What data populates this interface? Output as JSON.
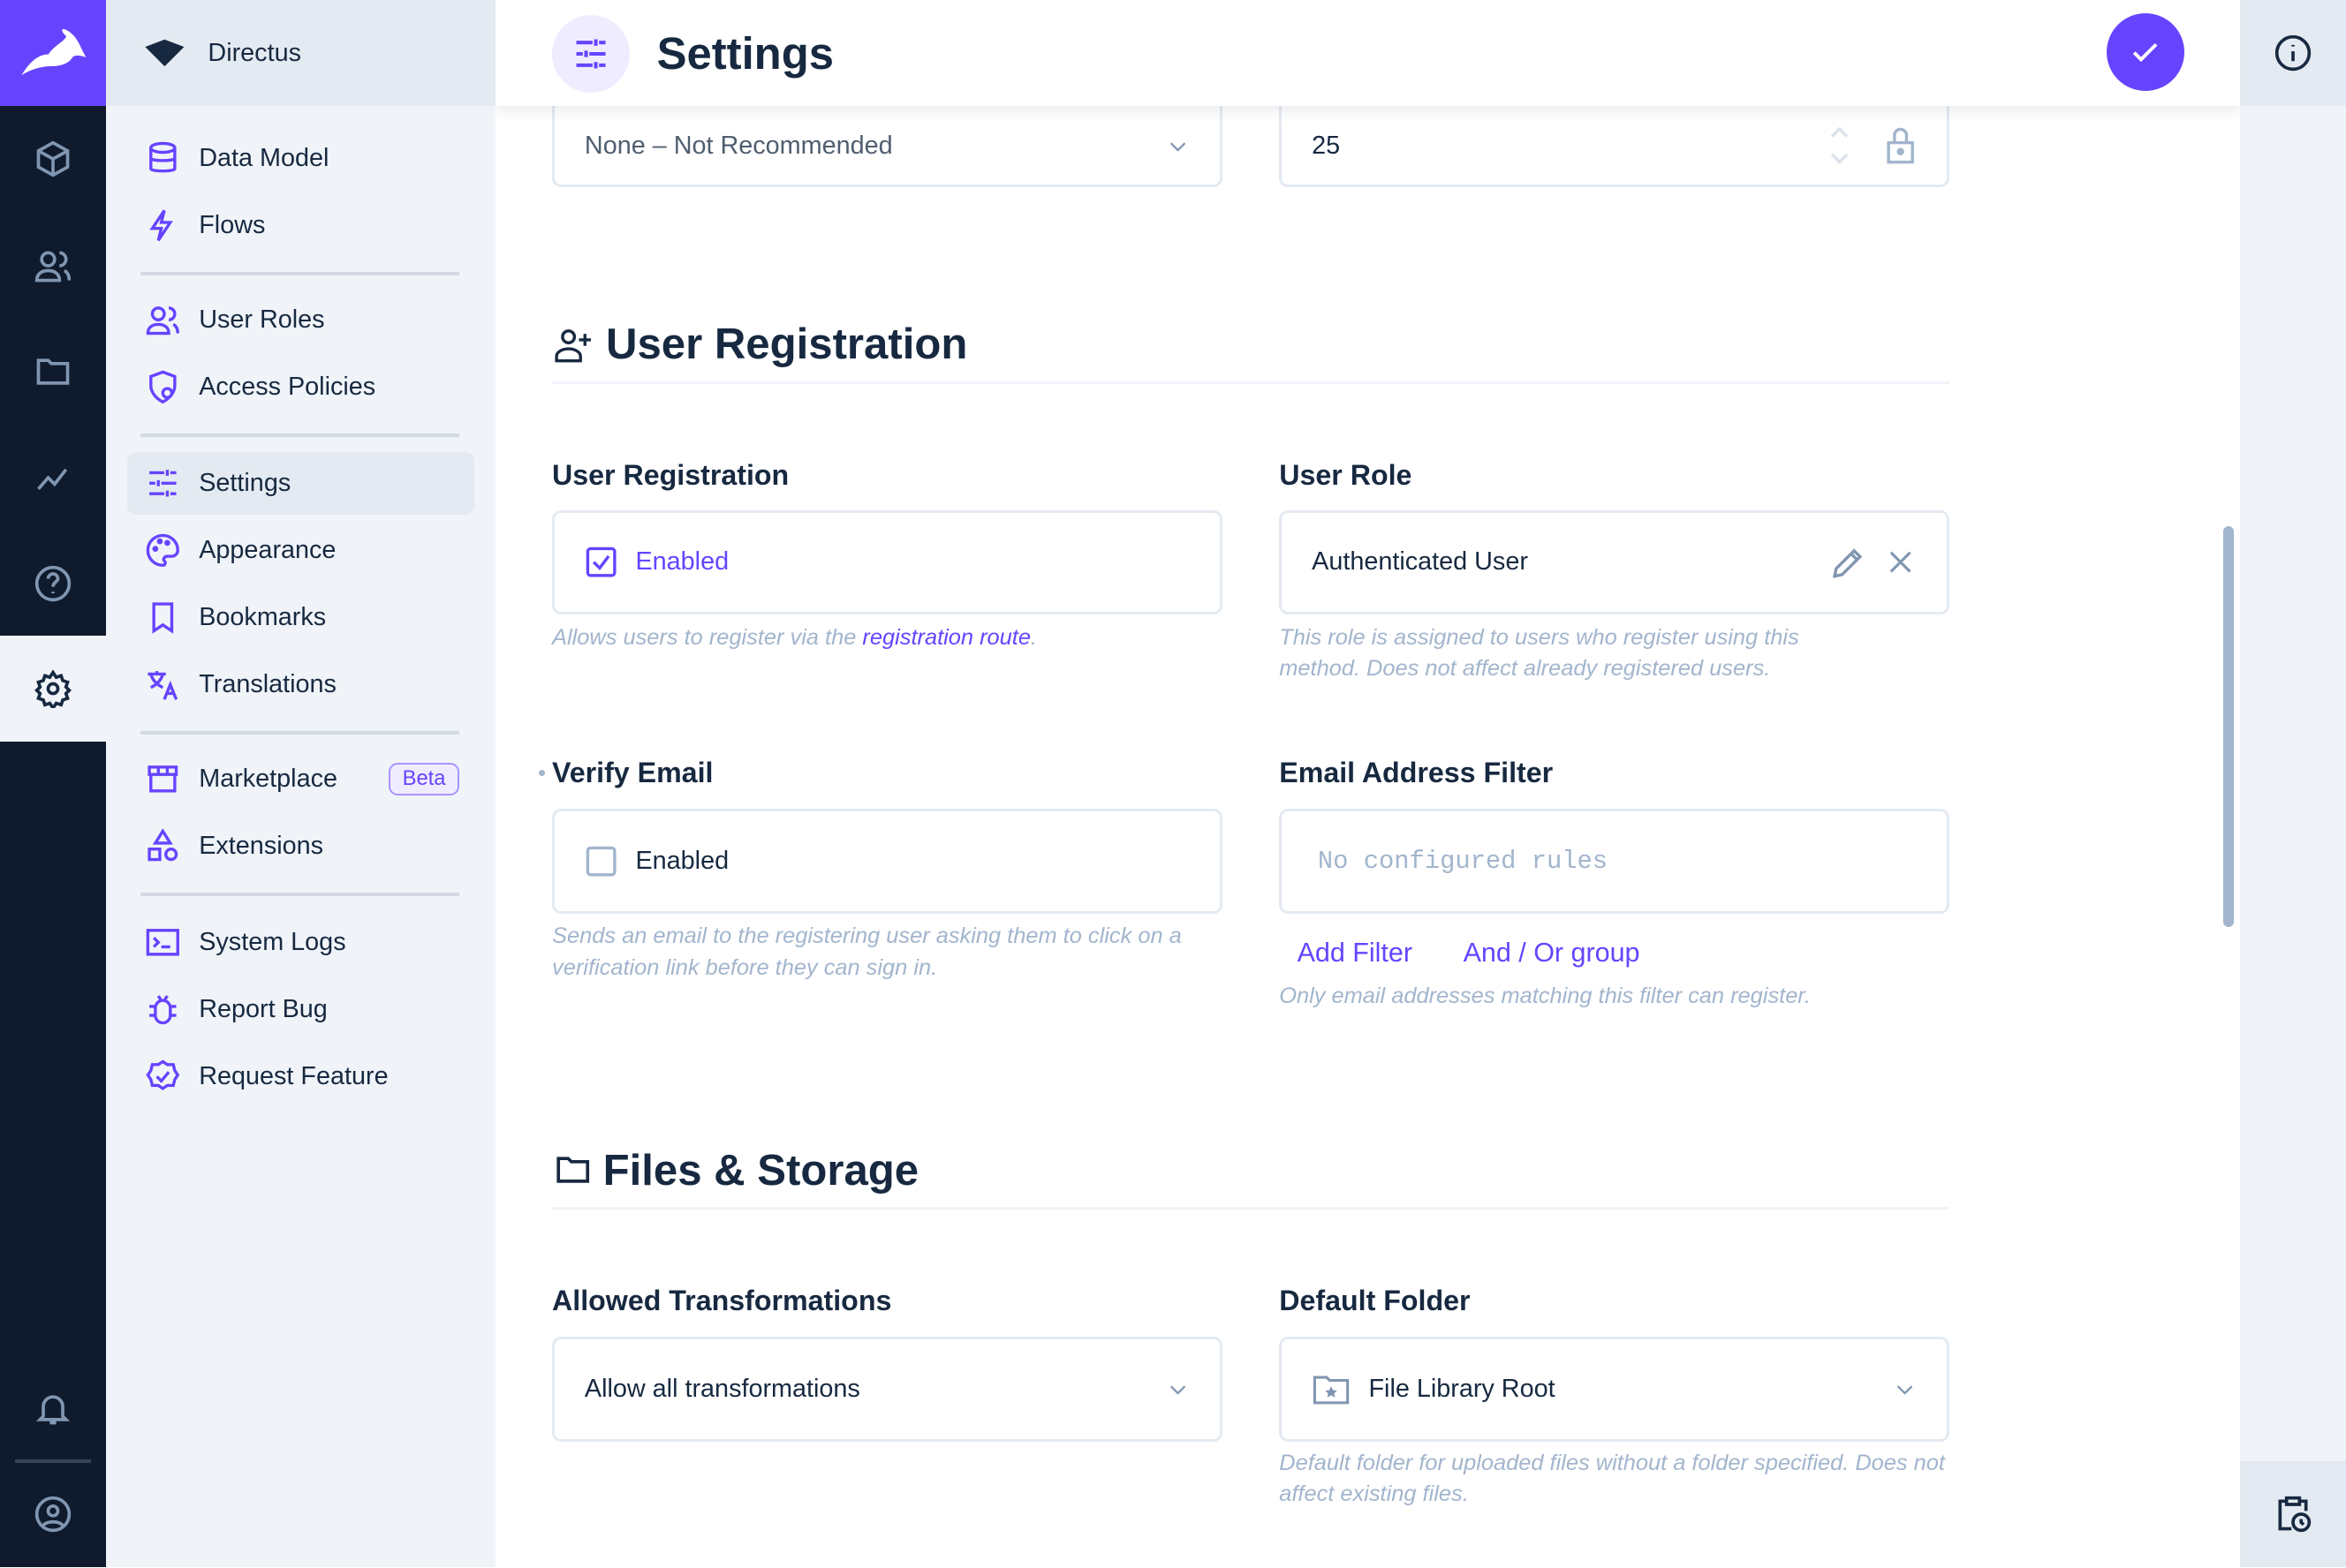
{
  "app": {
    "project_name": "Directus",
    "accent": "#6644ff"
  },
  "rail": {
    "items": [
      "content-icon",
      "users-icon",
      "files-icon",
      "insights-icon",
      "help-icon",
      "settings-icon",
      "notifications-icon",
      "account-icon"
    ]
  },
  "nav": {
    "items": [
      {
        "label": "Data Model"
      },
      {
        "label": "Flows"
      },
      {
        "label": "User Roles"
      },
      {
        "label": "Access Policies"
      },
      {
        "label": "Settings"
      },
      {
        "label": "Appearance"
      },
      {
        "label": "Bookmarks"
      },
      {
        "label": "Translations"
      },
      {
        "label": "Marketplace",
        "badge": "Beta"
      },
      {
        "label": "Extensions"
      },
      {
        "label": "System Logs"
      },
      {
        "label": "Report Bug"
      },
      {
        "label": "Request Feature"
      }
    ]
  },
  "header": {
    "title": "Settings"
  },
  "top_fields": {
    "select_value": "None – Not Recommended",
    "number_value": "25"
  },
  "user_registration": {
    "section_title": "User Registration",
    "registration": {
      "label": "User Registration",
      "value": "Enabled",
      "checked": true,
      "hint_before": "Allows users to register via the ",
      "hint_link": "registration route",
      "hint_after": "."
    },
    "role": {
      "label": "User Role",
      "value": "Authenticated User",
      "hint": "This role is assigned to users who register using this method. Does not affect already registered users."
    },
    "verify": {
      "label": "Verify Email",
      "value": "Enabled",
      "checked": false,
      "hint": "Sends an email to the registering user asking them to click on a verification link before they can sign in."
    },
    "filter": {
      "label": "Email Address Filter",
      "placeholder": "No configured rules",
      "add_filter": "Add Filter",
      "add_group": "And / Or group",
      "hint": "Only email addresses matching this filter can register."
    }
  },
  "files_storage": {
    "section_title": "Files & Storage",
    "transformations": {
      "label": "Allowed Transformations",
      "value": "Allow all transformations"
    },
    "folder": {
      "label": "Default Folder",
      "value": "File Library Root",
      "hint": "Default folder for uploaded files without a folder specified. Does not affect existing files."
    }
  }
}
